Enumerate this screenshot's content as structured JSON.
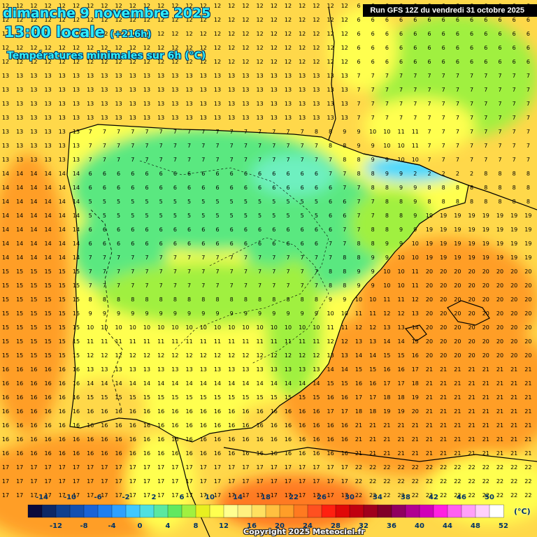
{
  "header": {
    "date_line": "dimanche 9 novembre 2025",
    "time_line": "13:00 locale",
    "lead_time": "(+216h)",
    "parameter": "Températures minimales sur 6h (°C)",
    "run_info": "Run GFS 12Z du vendredi 31 octobre 2025"
  },
  "legend": {
    "unit": "(°C)",
    "top_labels": [
      "-14",
      "-10",
      "-6",
      "-2",
      "2",
      "6",
      "10",
      "14",
      "18",
      "22",
      "26",
      "30",
      "34",
      "38",
      "42",
      "46",
      "50"
    ],
    "bottom_labels": [
      "-12",
      "-8",
      "-4",
      "0",
      "4",
      "8",
      "12",
      "16",
      "20",
      "24",
      "28",
      "32",
      "36",
      "40",
      "44",
      "48",
      "52"
    ],
    "colors": [
      "#0a0a3c",
      "#0d2866",
      "#10408f",
      "#1450b0",
      "#1a63d6",
      "#1f7ff0",
      "#2fa0ff",
      "#40c8ff",
      "#4fe0e0",
      "#5ae8a0",
      "#60e860",
      "#a0f040",
      "#e8f020",
      "#ffff50",
      "#ffff90",
      "#fff080",
      "#ffe060",
      "#ffc040",
      "#ff9e28",
      "#ff7a20",
      "#ff5020",
      "#ff2010",
      "#e00808",
      "#c00010",
      "#a0001c",
      "#800028",
      "#900060",
      "#b00090",
      "#d000b8",
      "#ff20e0",
      "#ff60f0",
      "#ffa0f8",
      "#ffd0fc",
      "#ffffff"
    ]
  },
  "map": {
    "grid_cols": 38,
    "grid_rows": 37,
    "palette": {
      "low": "#5ae880",
      "cool": "#a0f040",
      "mild": "#ffff50",
      "warm": "#ffd84a",
      "hot": "#ff9e28",
      "hotter": "#ff7a20",
      "cyan": "#40d8ff"
    },
    "coast_color": "#000000",
    "number_color": "#000000"
  },
  "footer": {
    "copyright": "Copyright 2025 Meteociel.fr"
  }
}
